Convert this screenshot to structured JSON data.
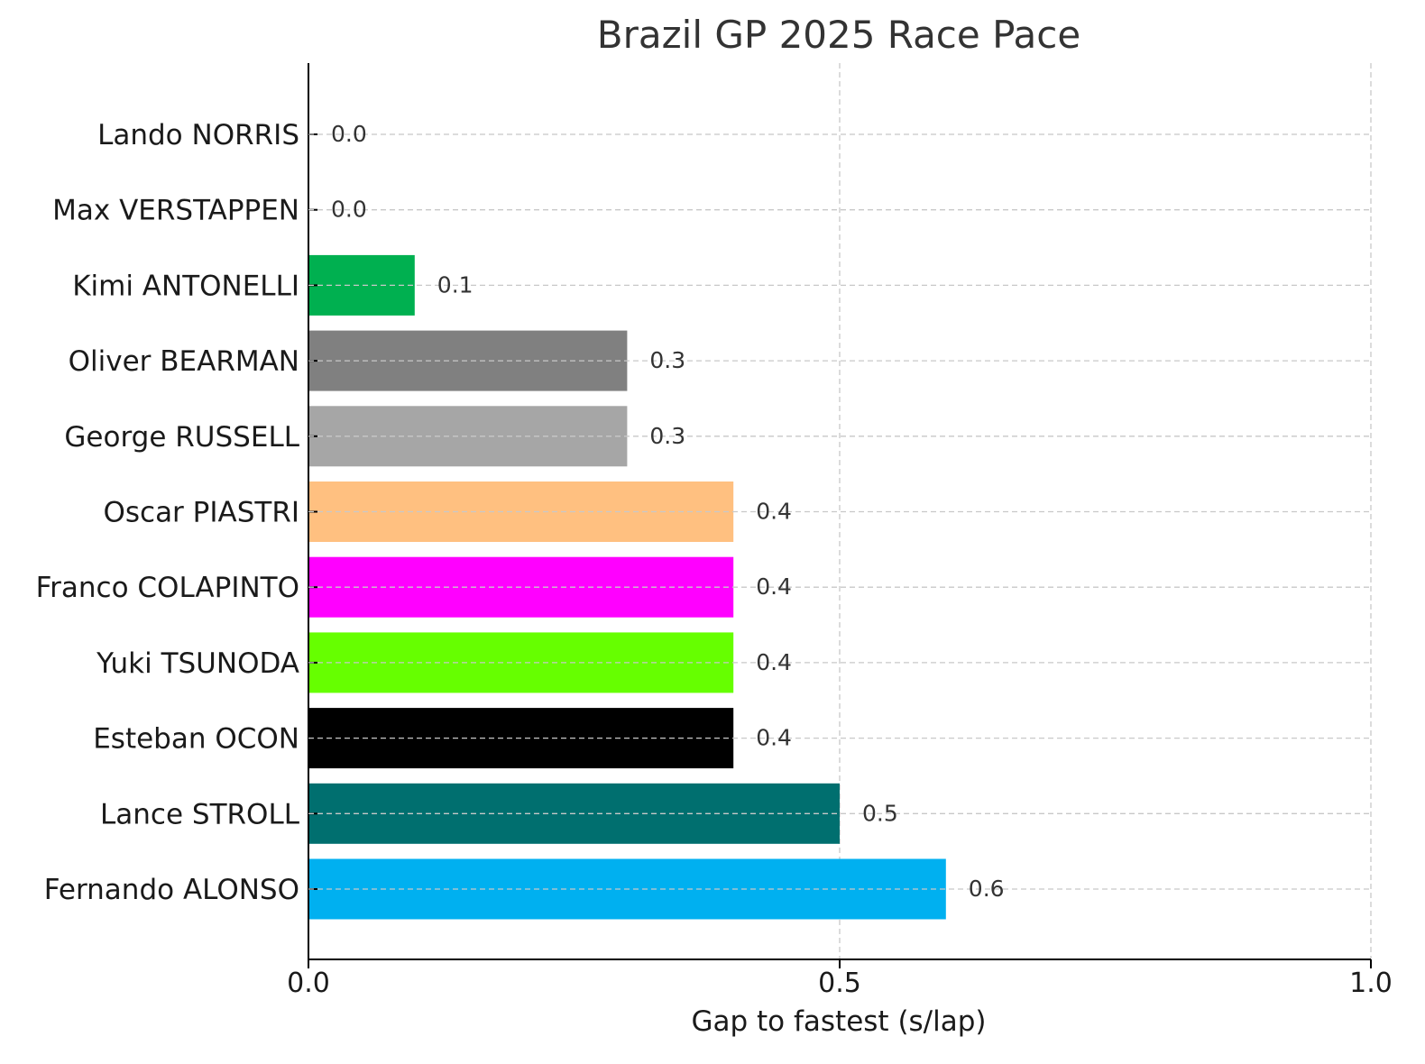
{
  "chart_data": {
    "type": "bar",
    "orientation": "horizontal",
    "title": "Brazil GP 2025 Race Pace",
    "xlabel": "Gap to fastest (s/lap)",
    "ylabel": "",
    "xlim": [
      0,
      1.0
    ],
    "xticks": [
      "0.0",
      "0.5",
      "1.0"
    ],
    "grid": true,
    "categories": [
      "Lando NORRIS",
      "Max VERSTAPPEN",
      "Kimi ANTONELLI",
      "Oliver BEARMAN",
      "George RUSSELL",
      "Oscar PIASTRI",
      "Franco COLAPINTO",
      "Yuki TSUNODA",
      "Esteban OCON",
      "Lance STROLL",
      "Fernando ALONSO"
    ],
    "values": [
      0.0,
      0.0,
      0.1,
      0.3,
      0.3,
      0.4,
      0.4,
      0.4,
      0.4,
      0.5,
      0.6
    ],
    "value_labels": [
      "0.0",
      "0.0",
      "0.1",
      "0.3",
      "0.3",
      "0.4",
      "0.4",
      "0.4",
      "0.4",
      "0.5",
      "0.6"
    ],
    "colors": [
      "#FF8000",
      "#1E41FF",
      "#00B050",
      "#808080",
      "#A6A6A6",
      "#FFC080",
      "#FF00FF",
      "#66FF00",
      "#000000",
      "#006F6F",
      "#00B0F0"
    ]
  }
}
